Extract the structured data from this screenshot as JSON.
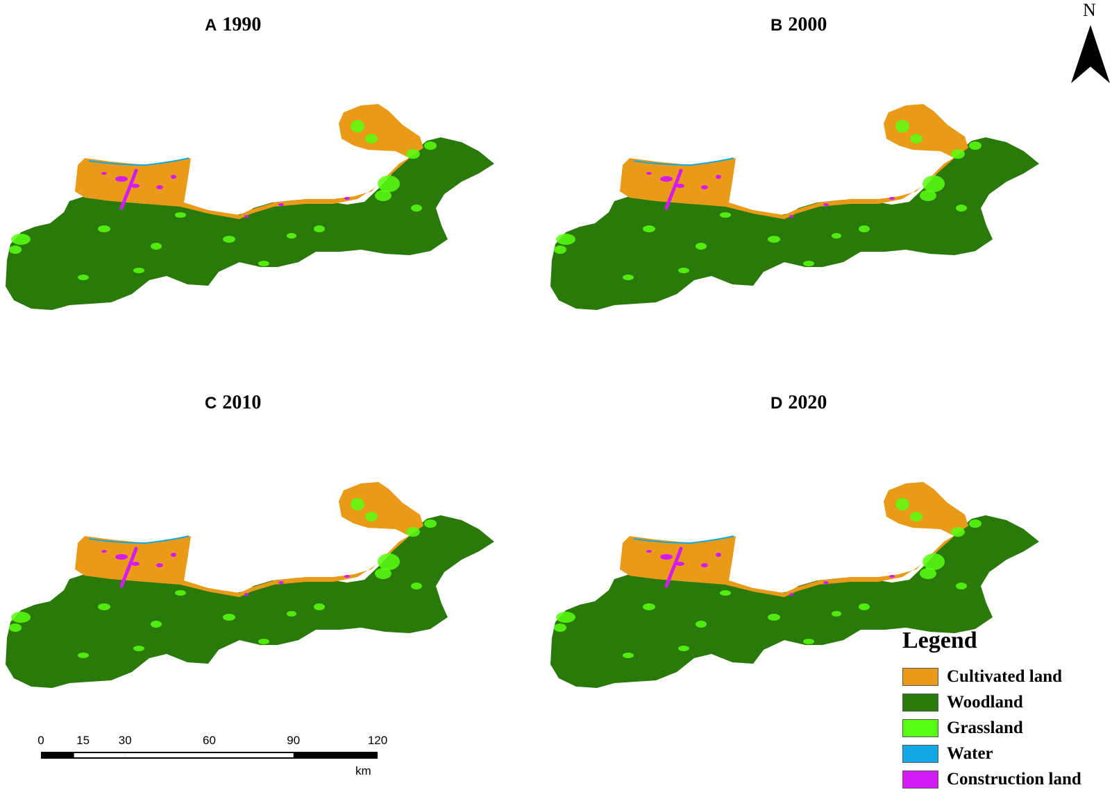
{
  "colors": {
    "cultivated": "#E89A18",
    "woodland": "#2A7A0B",
    "grassland": "#59FF12",
    "water": "#10A8E6",
    "construction": "#D51BF5"
  },
  "panels": [
    {
      "letter": "A",
      "year": "1990"
    },
    {
      "letter": "B",
      "year": "2000"
    },
    {
      "letter": "C",
      "year": "2010"
    },
    {
      "letter": "D",
      "year": "2020"
    }
  ],
  "north_arrow": {
    "label": "N"
  },
  "legend": {
    "title": "Legend",
    "items": [
      {
        "label": "Cultivated land",
        "color": "#E89A18"
      },
      {
        "label": "Woodland",
        "color": "#2A7A0B"
      },
      {
        "label": "Grassland",
        "color": "#59FF12"
      },
      {
        "label": "Water",
        "color": "#10A8E6"
      },
      {
        "label": "Construction land",
        "color": "#D51BF5"
      }
    ]
  },
  "scale_bar": {
    "ticks": [
      "0",
      "15",
      "30",
      "60",
      "90",
      "120"
    ],
    "tick_values": [
      0,
      15,
      30,
      60,
      90,
      120
    ],
    "unit": "km"
  }
}
